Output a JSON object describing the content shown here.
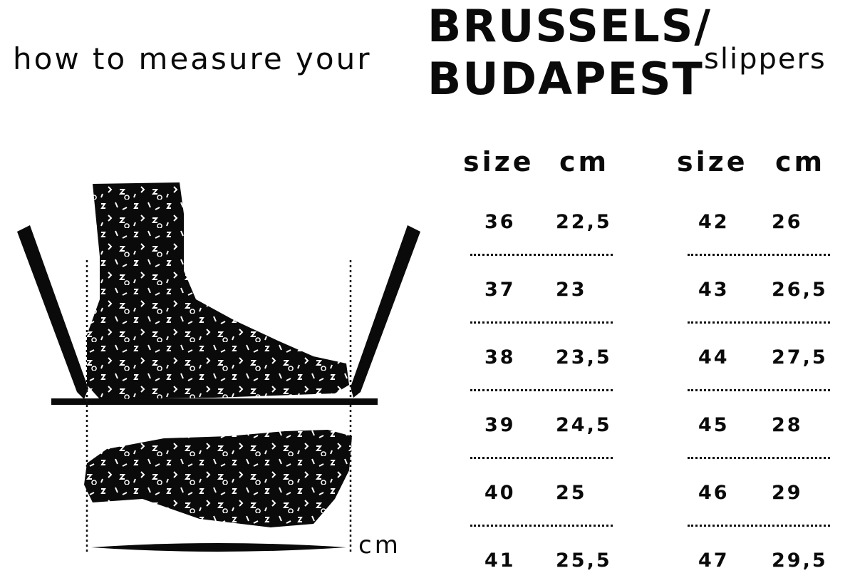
{
  "title": {
    "intro": "how to measure your",
    "brand_line1": "BRUSSELS/",
    "brand_line2": "BUDAPEST",
    "suffix": "slippers"
  },
  "illustration": {
    "measure_unit": "cm"
  },
  "table": {
    "headers": [
      "size",
      "cm",
      "size",
      "cm"
    ],
    "left": [
      {
        "size": "36",
        "cm": "22,5"
      },
      {
        "size": "37",
        "cm": "23"
      },
      {
        "size": "38",
        "cm": "23,5"
      },
      {
        "size": "39",
        "cm": "24,5"
      },
      {
        "size": "40",
        "cm": "25"
      },
      {
        "size": "41",
        "cm": "25,5"
      }
    ],
    "right": [
      {
        "size": "42",
        "cm": "26"
      },
      {
        "size": "43",
        "cm": "26,5"
      },
      {
        "size": "44",
        "cm": "27,5"
      },
      {
        "size": "45",
        "cm": "28"
      },
      {
        "size": "46",
        "cm": "29"
      },
      {
        "size": "47",
        "cm": "29,5"
      }
    ]
  }
}
